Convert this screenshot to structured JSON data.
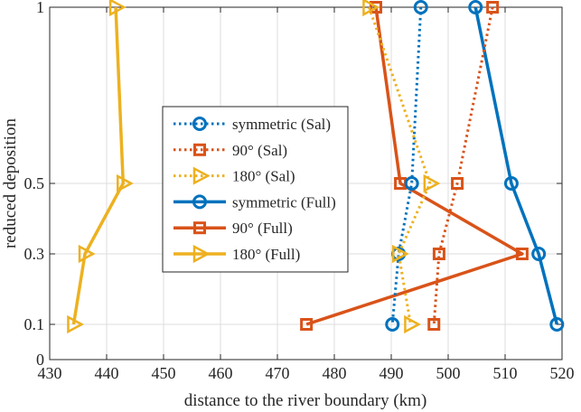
{
  "chart_data": {
    "type": "line",
    "title": "",
    "xlabel": "distance to the river boundary (km)",
    "ylabel": "reduced deposition",
    "xlim": [
      430,
      520
    ],
    "ylim": [
      0,
      1
    ],
    "xticks": [
      "430",
      "440",
      "450",
      "460",
      "470",
      "480",
      "490",
      "500",
      "510",
      "520"
    ],
    "yticks": [
      {
        "value": 0,
        "label": "0"
      },
      {
        "value": 0.1,
        "label": "0.1"
      },
      {
        "value": 0.3,
        "label": "0.3"
      },
      {
        "value": 0.5,
        "label": "0.5"
      },
      {
        "value": 1,
        "label": "1"
      }
    ],
    "grid": true,
    "legend_position": "center",
    "series": [
      {
        "name": "symmetric (Sal)",
        "color": "#0072BD",
        "style": "dotted",
        "marker": "circle",
        "y": [
          1,
          0.5,
          0.3,
          0.1
        ],
        "x": [
          495.2,
          493.6,
          491.3,
          490.2
        ]
      },
      {
        "name": "90° (Sal)",
        "color": "#D95319",
        "style": "dotted",
        "marker": "square",
        "y": [
          1,
          0.5,
          0.3,
          0.1
        ],
        "x": [
          507.8,
          501.6,
          498.4,
          497.5
        ]
      },
      {
        "name": "180° (Sal)",
        "color": "#EDB120",
        "style": "dotted",
        "marker": "triangle-right",
        "y": [
          1,
          0.5,
          0.3,
          0.1
        ],
        "x": [
          486.1,
          496.8,
          491.3,
          493.4
        ]
      },
      {
        "name": "symmetric (Full)",
        "color": "#0072BD",
        "style": "solid",
        "marker": "circle",
        "y": [
          1,
          0.5,
          0.3,
          0.1
        ],
        "x": [
          504.8,
          511.1,
          515.9,
          519.1
        ]
      },
      {
        "name": "90° (Full)",
        "color": "#D95319",
        "style": "solid",
        "marker": "square",
        "y": [
          1,
          0.5,
          0.3,
          0.1
        ],
        "x": [
          487.3,
          491.6,
          513.0,
          475.1
        ]
      },
      {
        "name": "180° (Full)",
        "color": "#EDB120",
        "style": "solid",
        "marker": "triangle-right",
        "y": [
          1,
          0.5,
          0.3,
          0.1
        ],
        "x": [
          441.6,
          442.9,
          436.2,
          434.2
        ]
      }
    ]
  }
}
